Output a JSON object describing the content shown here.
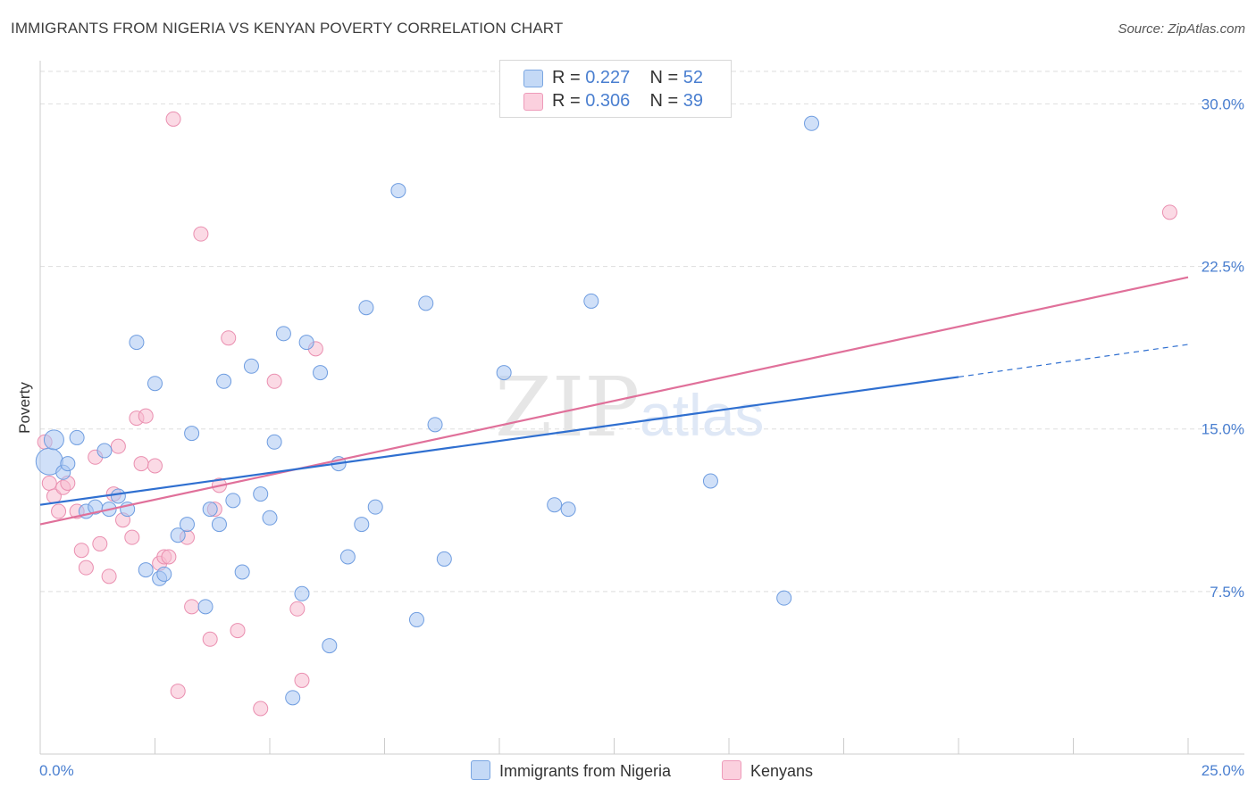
{
  "title": "IMMIGRANTS FROM NIGERIA VS KENYAN POVERTY CORRELATION CHART",
  "source": "Source: ZipAtlas.com",
  "watermark": {
    "zip": "ZIP",
    "atlas": "atlas"
  },
  "legend": {
    "rows": [
      {
        "r_label": "R =",
        "r_value": "0.227",
        "n_label": "N =",
        "n_value": "52"
      },
      {
        "r_label": "R =",
        "r_value": "0.306",
        "n_label": "N =",
        "n_value": "39"
      }
    ]
  },
  "colors": {
    "nigeria_fill": "#a9c7f2",
    "nigeria_stroke": "#6f9de0",
    "nigeria_line": "#2f6fd0",
    "kenyan_fill": "#f7bcd0",
    "kenyan_stroke": "#ea8fb0",
    "kenyan_line": "#e0709a",
    "accent_text": "#4a7fd0",
    "grid": "#dddddd"
  },
  "chart_data": {
    "type": "scatter",
    "title": "IMMIGRANTS FROM NIGERIA VS KENYAN POVERTY CORRELATION CHART",
    "xlabel": "",
    "ylabel": "Poverty",
    "xlim": [
      0,
      25
    ],
    "ylim": [
      0,
      31.5
    ],
    "x_tick_labels": [
      "0.0%",
      "25.0%"
    ],
    "y_tick_labels": [
      "7.5%",
      "15.0%",
      "22.5%",
      "30.0%"
    ],
    "y_ticks": [
      7.5,
      15.0,
      22.5,
      30.0
    ],
    "grid": true,
    "legend_position": "top-center",
    "series": [
      {
        "name": "Immigrants from Nigeria",
        "r": 0.227,
        "n": 52,
        "trend": {
          "x0": 0,
          "y0": 11.5,
          "x1": 20,
          "y1": 17.4,
          "dashed_to_x": 25,
          "dashed_to_y": 18.9
        },
        "points": [
          [
            0.2,
            13.5
          ],
          [
            0.3,
            14.5
          ],
          [
            0.5,
            13.0
          ],
          [
            0.6,
            13.4
          ],
          [
            0.8,
            14.6
          ],
          [
            1.0,
            11.2
          ],
          [
            1.2,
            11.4
          ],
          [
            1.4,
            14.0
          ],
          [
            1.5,
            11.3
          ],
          [
            1.7,
            11.9
          ],
          [
            1.9,
            11.3
          ],
          [
            2.1,
            19.0
          ],
          [
            2.3,
            8.5
          ],
          [
            2.5,
            17.1
          ],
          [
            2.6,
            8.1
          ],
          [
            2.7,
            8.3
          ],
          [
            3.0,
            10.1
          ],
          [
            3.2,
            10.6
          ],
          [
            3.3,
            14.8
          ],
          [
            3.6,
            6.8
          ],
          [
            3.7,
            11.3
          ],
          [
            3.9,
            10.6
          ],
          [
            4.0,
            17.2
          ],
          [
            4.2,
            11.7
          ],
          [
            4.4,
            8.4
          ],
          [
            4.6,
            17.9
          ],
          [
            4.8,
            12.0
          ],
          [
            5.0,
            10.9
          ],
          [
            5.1,
            14.4
          ],
          [
            5.3,
            19.4
          ],
          [
            5.5,
            2.6
          ],
          [
            5.7,
            7.4
          ],
          [
            5.8,
            19.0
          ],
          [
            6.1,
            17.6
          ],
          [
            6.3,
            5.0
          ],
          [
            6.5,
            13.4
          ],
          [
            6.7,
            9.1
          ],
          [
            7.0,
            10.6
          ],
          [
            7.1,
            20.6
          ],
          [
            7.3,
            11.4
          ],
          [
            7.8,
            26.0
          ],
          [
            8.2,
            6.2
          ],
          [
            8.4,
            20.8
          ],
          [
            8.6,
            15.2
          ],
          [
            8.8,
            9.0
          ],
          [
            10.1,
            17.6
          ],
          [
            11.2,
            11.5
          ],
          [
            11.5,
            11.3
          ],
          [
            12.0,
            20.9
          ],
          [
            14.6,
            12.6
          ],
          [
            16.2,
            7.2
          ],
          [
            16.8,
            29.1
          ]
        ]
      },
      {
        "name": "Kenyans",
        "r": 0.306,
        "n": 39,
        "trend": {
          "x0": 0,
          "y0": 10.6,
          "x1": 25,
          "y1": 22.0
        },
        "points": [
          [
            0.1,
            14.4
          ],
          [
            0.2,
            12.5
          ],
          [
            0.3,
            11.9
          ],
          [
            0.4,
            11.2
          ],
          [
            0.5,
            12.3
          ],
          [
            0.6,
            12.5
          ],
          [
            0.8,
            11.2
          ],
          [
            0.9,
            9.4
          ],
          [
            1.0,
            8.6
          ],
          [
            1.2,
            13.7
          ],
          [
            1.3,
            9.7
          ],
          [
            1.5,
            8.2
          ],
          [
            1.6,
            12.0
          ],
          [
            1.7,
            14.2
          ],
          [
            1.8,
            10.8
          ],
          [
            2.0,
            10.0
          ],
          [
            2.1,
            15.5
          ],
          [
            2.2,
            13.4
          ],
          [
            2.3,
            15.6
          ],
          [
            2.5,
            13.3
          ],
          [
            2.6,
            8.8
          ],
          [
            2.7,
            9.1
          ],
          [
            2.8,
            9.1
          ],
          [
            2.9,
            29.3
          ],
          [
            3.0,
            2.9
          ],
          [
            3.2,
            10.0
          ],
          [
            3.3,
            6.8
          ],
          [
            3.5,
            24.0
          ],
          [
            3.7,
            5.3
          ],
          [
            3.8,
            11.3
          ],
          [
            3.9,
            12.4
          ],
          [
            4.1,
            19.2
          ],
          [
            4.3,
            5.7
          ],
          [
            4.8,
            2.1
          ],
          [
            5.1,
            17.2
          ],
          [
            5.6,
            6.7
          ],
          [
            5.7,
            3.4
          ],
          [
            6.0,
            18.7
          ],
          [
            24.6,
            25.0
          ]
        ]
      }
    ]
  }
}
